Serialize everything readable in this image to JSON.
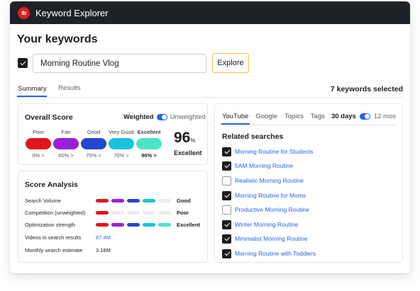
{
  "app": {
    "title": "Keyword Explorer",
    "logo_text": "tb"
  },
  "page": {
    "heading": "Your keywords"
  },
  "search": {
    "value": "Morning Routine Vlog",
    "checked": true,
    "explore_label": "Explore"
  },
  "tabs": {
    "summary": "Summary",
    "results": "Results",
    "selected_count": "7 keywords selected"
  },
  "overall": {
    "title": "Overall Score",
    "weighted_label": "Weighted",
    "unweighted_label": "Unweighted",
    "levels": [
      {
        "label": "Poor",
        "pct": "0% >",
        "color": "#e0161b"
      },
      {
        "label": "Fair",
        "pct": "60% >",
        "color": "#9b1fd9"
      },
      {
        "label": "Good",
        "pct": "70% >",
        "color": "#2447cf"
      },
      {
        "label": "Very Good",
        "pct": "70% >",
        "color": "#18c3dd"
      },
      {
        "label": "Excellent",
        "pct": "90% >",
        "color": "#4ee3c6"
      }
    ],
    "score": "96",
    "score_unit": "%",
    "rating": "Excellent"
  },
  "analysis": {
    "title": "Score Analysis",
    "rows": [
      {
        "name": "Search Volume",
        "filled": 4,
        "result": "Good"
      },
      {
        "name": "Competition (unweighted)",
        "filled": 1,
        "result": "Poor"
      },
      {
        "name": "Optimization strength",
        "filled": 5,
        "result": "Excellent"
      }
    ],
    "stats": [
      {
        "name": "Videos in search results",
        "value": "67.4M",
        "link": true
      },
      {
        "name": "Monthly search estimate",
        "value": "3.18M",
        "link": false
      }
    ],
    "pill_colors": [
      "#e0161b",
      "#9b1fd9",
      "#2447cf",
      "#18c3dd",
      "#4ee3c6"
    ],
    "pill_empty": "#ececec"
  },
  "related": {
    "tabs": [
      "YouTube",
      "Google",
      "Topics",
      "Tags"
    ],
    "days_label": "30 days",
    "months_label": "12 mos",
    "title": "Related searches",
    "items": [
      {
        "label": "Morning Routine for Students",
        "checked": true
      },
      {
        "label": "5AM Morning Routine",
        "checked": true
      },
      {
        "label": "Realistic Morning Routine",
        "checked": false
      },
      {
        "label": "Morning Routine for Moms",
        "checked": true
      },
      {
        "label": "Productive Morning Routine",
        "checked": false
      },
      {
        "label": "Winter Morning Routine",
        "checked": true
      },
      {
        "label": "Minimalist Morning Routine",
        "checked": true
      },
      {
        "label": "Morning Routine with Toddlers",
        "checked": true
      }
    ]
  }
}
